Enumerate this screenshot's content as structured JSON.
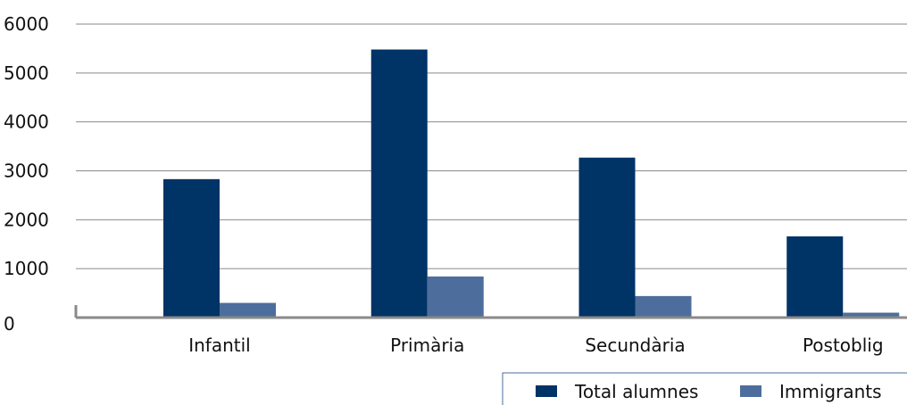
{
  "chart_data": {
    "type": "bar",
    "categories": [
      "Infantil",
      "Primària",
      "Secundària",
      "Postoblig"
    ],
    "series": [
      {
        "name": "Total alumnes",
        "values": [
          2830,
          5480,
          3270,
          1660
        ],
        "color": "#003366"
      },
      {
        "name": "Immigrants",
        "values": [
          300,
          840,
          440,
          100
        ],
        "color": "#4d6e9c"
      }
    ],
    "title": "",
    "xlabel": "",
    "ylabel": "",
    "ylim": [
      0,
      6000
    ],
    "yticks": [
      "0",
      "1000",
      "2000",
      "3000",
      "4000",
      "5000",
      "6000"
    ],
    "grid": true,
    "legend_position": "bottom-right"
  }
}
